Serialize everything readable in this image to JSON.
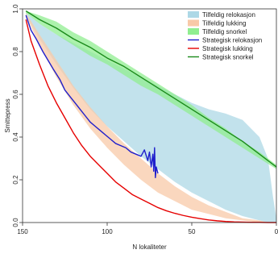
{
  "chart_data": {
    "type": "area",
    "xlabel": "N lokaliteter",
    "ylabel": "Smittepress",
    "x_reversed": true,
    "xlim": [
      150,
      0
    ],
    "ylim": [
      0,
      1
    ],
    "x_ticks": [
      {
        "value": 150,
        "label": "150"
      },
      {
        "value": 100,
        "label": "100"
      },
      {
        "value": 50,
        "label": "50"
      },
      {
        "value": 0,
        "label": "0"
      }
    ],
    "y_ticks": [
      {
        "value": 0,
        "label": "0.0"
      },
      {
        "value": 0.2,
        "label": "0.2"
      },
      {
        "value": 0.4,
        "label": "0.4"
      },
      {
        "value": 0.6,
        "label": "0.6"
      },
      {
        "value": 0.8,
        "label": "0.8"
      },
      {
        "value": 1,
        "label": "1.0"
      }
    ],
    "legend_position": "top-right",
    "grid": false,
    "bands": [
      {
        "name": "Tilfeldig relokasjon",
        "color": "#add8e6",
        "x": [
          148,
          140,
          130,
          120,
          110,
          100,
          90,
          80,
          70,
          60,
          50,
          40,
          30,
          20,
          10,
          5,
          2,
          0
        ],
        "upper": [
          0.98,
          0.93,
          0.88,
          0.84,
          0.8,
          0.76,
          0.72,
          0.68,
          0.64,
          0.6,
          0.56,
          0.53,
          0.51,
          0.48,
          0.4,
          0.3,
          0.12,
          0.02
        ],
        "lower": [
          0.97,
          0.86,
          0.74,
          0.63,
          0.53,
          0.45,
          0.38,
          0.31,
          0.25,
          0.19,
          0.14,
          0.1,
          0.06,
          0.03,
          0.01,
          0.0,
          0.0,
          0.0
        ]
      },
      {
        "name": "Tilfeldig lukking",
        "color": "#f8c9a8",
        "x": [
          148,
          140,
          130,
          120,
          110,
          100,
          90,
          80,
          70,
          60,
          50,
          40,
          30,
          20,
          10,
          5,
          0
        ],
        "upper": [
          0.98,
          0.88,
          0.76,
          0.64,
          0.54,
          0.45,
          0.37,
          0.3,
          0.23,
          0.17,
          0.12,
          0.08,
          0.05,
          0.02,
          0.01,
          0.0,
          0.0
        ],
        "lower": [
          0.97,
          0.83,
          0.68,
          0.55,
          0.44,
          0.35,
          0.27,
          0.2,
          0.14,
          0.1,
          0.06,
          0.04,
          0.02,
          0.01,
          0.0,
          0.0,
          0.0
        ]
      },
      {
        "name": "Tilfeldig snorkel",
        "color": "#90ee90",
        "x": [
          148,
          140,
          130,
          120,
          110,
          100,
          90,
          80,
          70,
          60,
          50,
          40,
          30,
          20,
          10,
          0
        ],
        "upper": [
          0.99,
          0.97,
          0.94,
          0.89,
          0.85,
          0.8,
          0.75,
          0.7,
          0.65,
          0.6,
          0.55,
          0.49,
          0.44,
          0.38,
          0.33,
          0.27
        ],
        "lower": [
          0.98,
          0.93,
          0.88,
          0.83,
          0.78,
          0.74,
          0.69,
          0.64,
          0.6,
          0.55,
          0.5,
          0.45,
          0.4,
          0.35,
          0.3,
          0.25
        ]
      }
    ],
    "series": [
      {
        "name": "Strategisk relokasjon",
        "color": "#1f1fcc",
        "x": [
          148,
          145,
          142,
          138,
          135,
          132,
          128,
          125,
          122,
          119,
          116,
          113,
          110,
          107,
          104,
          101,
          98,
          95,
          92,
          89,
          86,
          83,
          80,
          78,
          76,
          75,
          74,
          73,
          72.5,
          72,
          71.5,
          71,
          70
        ],
        "y": [
          0.97,
          0.9,
          0.86,
          0.8,
          0.76,
          0.72,
          0.67,
          0.62,
          0.59,
          0.56,
          0.53,
          0.5,
          0.47,
          0.45,
          0.43,
          0.41,
          0.39,
          0.37,
          0.36,
          0.35,
          0.33,
          0.32,
          0.31,
          0.34,
          0.29,
          0.33,
          0.26,
          0.32,
          0.24,
          0.35,
          0.21,
          0.26,
          0.23
        ]
      },
      {
        "name": "Strategisk lukking",
        "color": "#e60000",
        "x": [
          148,
          145,
          140,
          135,
          130,
          125,
          120,
          115,
          110,
          105,
          100,
          95,
          90,
          85,
          80,
          75,
          70,
          65,
          60,
          55,
          50,
          45,
          40,
          35,
          30,
          25,
          20,
          15,
          10,
          5,
          0
        ],
        "y": [
          0.95,
          0.85,
          0.74,
          0.64,
          0.56,
          0.49,
          0.42,
          0.36,
          0.31,
          0.27,
          0.23,
          0.19,
          0.16,
          0.13,
          0.11,
          0.09,
          0.07,
          0.055,
          0.043,
          0.033,
          0.025,
          0.018,
          0.012,
          0.008,
          0.005,
          0.003,
          0.002,
          0.001,
          0.001,
          0.0,
          0.0
        ]
      },
      {
        "name": "Strategisk snorkel",
        "color": "#1a8a1a",
        "x": [
          148,
          140,
          130,
          120,
          110,
          100,
          90,
          80,
          70,
          60,
          50,
          40,
          30,
          20,
          10,
          0
        ],
        "y": [
          0.99,
          0.95,
          0.91,
          0.86,
          0.82,
          0.77,
          0.73,
          0.68,
          0.63,
          0.58,
          0.53,
          0.48,
          0.43,
          0.38,
          0.32,
          0.26
        ]
      }
    ],
    "legend": [
      {
        "label": "Tilfeldig relokasjon",
        "kind": "band",
        "color": "#add8e6"
      },
      {
        "label": "Tilfeldig lukking",
        "kind": "band",
        "color": "#f8c9a8"
      },
      {
        "label": "Tilfeldig snorkel",
        "kind": "band",
        "color": "#90ee90"
      },
      {
        "label": "Strategisk relokasjon",
        "kind": "line",
        "color": "#1f1fcc"
      },
      {
        "label": "Strategisk lukking",
        "kind": "line",
        "color": "#e60000"
      },
      {
        "label": "Strategisk snorkel",
        "kind": "line",
        "color": "#1a8a1a"
      }
    ]
  }
}
